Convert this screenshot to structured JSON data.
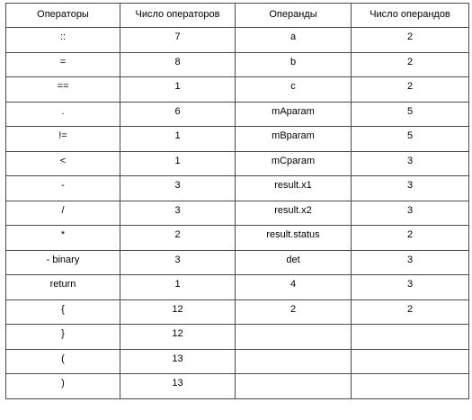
{
  "table": {
    "headers": [
      "Операторы",
      "Число операторов",
      "Операнды",
      "Число операндов"
    ],
    "rows": [
      [
        "::",
        "7",
        "a",
        "2"
      ],
      [
        "=",
        "8",
        "b",
        "2"
      ],
      [
        "==",
        "1",
        "c",
        "2"
      ],
      [
        ".",
        "6",
        "mAparam",
        "5"
      ],
      [
        "!=",
        "1",
        "mBparam",
        "5"
      ],
      [
        "<",
        "1",
        "mCparam",
        "3"
      ],
      [
        "-",
        "3",
        "result.x1",
        "3"
      ],
      [
        "/",
        "3",
        "result.x2",
        "3"
      ],
      [
        "*",
        "2",
        "result.status",
        "2"
      ],
      [
        "-  binary",
        "3",
        "det",
        "3"
      ],
      [
        "return",
        "1",
        "4",
        "3"
      ],
      [
        "{",
        "12",
        "2",
        "2"
      ],
      [
        "}",
        "12",
        "",
        ""
      ],
      [
        "(",
        "13",
        "",
        ""
      ],
      [
        ")",
        "13",
        "",
        ""
      ]
    ]
  }
}
